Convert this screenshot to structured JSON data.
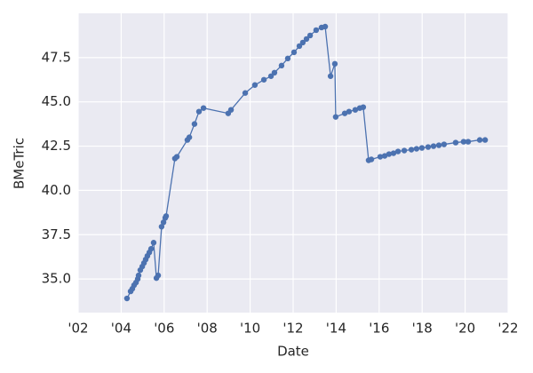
{
  "chart_data": {
    "type": "line",
    "x_label": "Date",
    "y_label": "BMeTric",
    "x": [
      2004.27,
      2004.44,
      2004.52,
      2004.6,
      2004.69,
      2004.77,
      2004.81,
      2004.89,
      2004.98,
      2005.06,
      2005.14,
      2005.22,
      2005.31,
      2005.39,
      2005.51,
      2005.64,
      2005.72,
      2005.88,
      2005.97,
      2006.05,
      2006.09,
      2006.5,
      2006.59,
      2007.08,
      2007.17,
      2007.41,
      2007.62,
      2007.83,
      2008.98,
      2009.11,
      2009.77,
      2010.22,
      2010.64,
      2010.97,
      2011.13,
      2011.46,
      2011.75,
      2012.04,
      2012.29,
      2012.45,
      2012.62,
      2012.79,
      2013.07,
      2013.32,
      2013.49,
      2013.74,
      2013.94,
      2013.98,
      2014.4,
      2014.6,
      2014.89,
      2015.1,
      2015.26,
      2015.51,
      2015.64,
      2016.05,
      2016.26,
      2016.46,
      2016.67,
      2016.88,
      2017.17,
      2017.5,
      2017.74,
      2017.99,
      2018.28,
      2018.53,
      2018.78,
      2019.02,
      2019.56,
      2019.93,
      2020.14,
      2020.68,
      2020.93
    ],
    "series": [
      {
        "name": "BMeTric",
        "color": "#4c72b0",
        "values": [
          33.9,
          34.3,
          34.45,
          34.65,
          34.8,
          35.0,
          35.2,
          35.5,
          35.7,
          35.9,
          36.1,
          36.3,
          36.5,
          36.7,
          37.05,
          35.05,
          35.2,
          37.95,
          38.2,
          38.45,
          38.55,
          41.8,
          41.9,
          42.85,
          43.0,
          43.75,
          44.45,
          44.65,
          44.35,
          44.55,
          45.5,
          45.95,
          46.25,
          46.45,
          46.65,
          47.05,
          47.45,
          47.8,
          48.15,
          48.35,
          48.55,
          48.75,
          49.05,
          49.2,
          49.25,
          46.45,
          47.15,
          44.15,
          44.35,
          44.45,
          44.55,
          44.65,
          44.7,
          41.7,
          41.75,
          41.9,
          41.95,
          42.05,
          42.1,
          42.2,
          42.25,
          42.3,
          42.35,
          42.4,
          42.45,
          42.5,
          42.55,
          42.6,
          42.7,
          42.75,
          42.75,
          42.85,
          42.85
        ]
      }
    ],
    "xlim": [
      2002,
      2022
    ],
    "xticks": [
      {
        "value": 2002,
        "label": "'02"
      },
      {
        "value": 2004,
        "label": "'04"
      },
      {
        "value": 2006,
        "label": "'06"
      },
      {
        "value": 2008,
        "label": "'08"
      },
      {
        "value": 2010,
        "label": "'10"
      },
      {
        "value": 2012,
        "label": "'12"
      },
      {
        "value": 2014,
        "label": "'14"
      },
      {
        "value": 2016,
        "label": "'16"
      },
      {
        "value": 2018,
        "label": "'18"
      },
      {
        "value": 2020,
        "label": "'20"
      },
      {
        "value": 2022,
        "label": "'22"
      }
    ],
    "ylim": [
      33.1,
      50.0
    ],
    "yticks": [
      {
        "value": 35,
        "label": "35.0"
      },
      37.5,
      {
        "value": 40,
        "label": "40.0"
      },
      42.5,
      {
        "value": 45,
        "label": "45.0"
      },
      47.5
    ],
    "grid": true
  }
}
